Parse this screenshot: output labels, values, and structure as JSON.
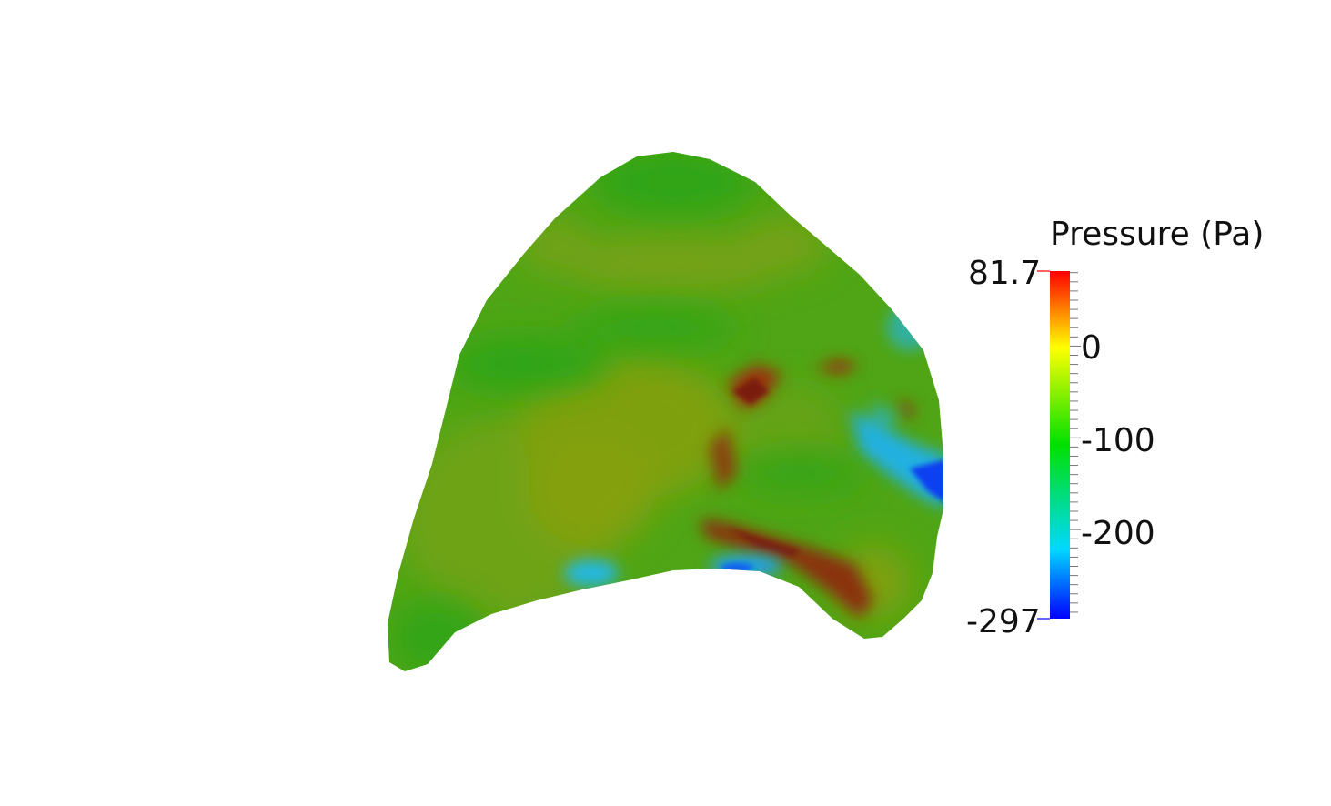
{
  "scalar_bar": {
    "title": "Pressure (Pa)",
    "min_label": "-297",
    "max_label": "81.7",
    "min_value": -297,
    "max_value": 81.7,
    "tick_labels": [
      "0",
      "-100",
      "-200"
    ],
    "colormap": [
      "#0000ff",
      "#00d9ff",
      "#00e000",
      "#ffff00",
      "#ff0000"
    ]
  },
  "surface": {
    "base_color": "#4fa515",
    "colors": {
      "green": "#3aa512",
      "olive": "#7fa010",
      "brown": "#8a3010",
      "blue": "#1060f0",
      "cyan": "#20b0e0"
    }
  }
}
